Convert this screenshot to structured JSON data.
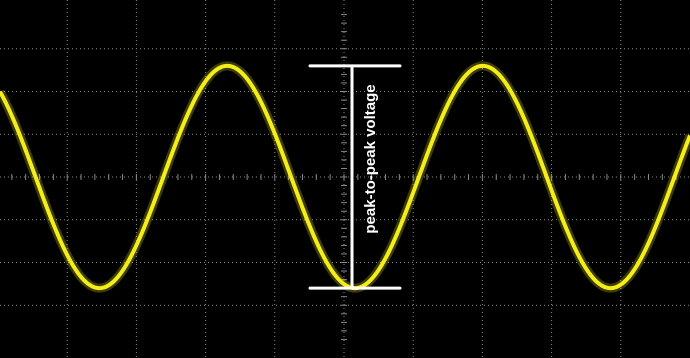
{
  "screen": {
    "background_color": "#000000",
    "grid_color": "#8a8a8a",
    "grid": true,
    "divisions": {
      "horizontal": 10,
      "vertical": 8
    }
  },
  "chart_data": {
    "type": "line",
    "title": "",
    "xlabel": "",
    "ylabel": "",
    "series": [
      {
        "color": "#f3ee1a",
        "shape": "sine",
        "cycles_visible": 2.7,
        "peak_divisions": 2.6,
        "trough_divisions": -2.6
      }
    ],
    "annotations": [
      {
        "type": "peak-to-peak-marker",
        "label": "peak-to-peak voltage",
        "color": "#ffffff"
      }
    ]
  }
}
